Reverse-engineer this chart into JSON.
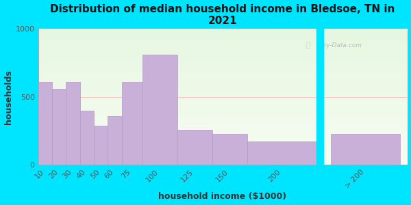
{
  "title": "Distribution of median household income in Bledsoe, TN in\n2021",
  "xlabel": "household income ($1000)",
  "ylabel": "households",
  "bar_labels": [
    "10",
    "20",
    "30",
    "40",
    "50",
    "60",
    "75",
    "100",
    "125",
    "150",
    "200",
    "> 200"
  ],
  "bar_values": [
    610,
    560,
    610,
    400,
    290,
    360,
    610,
    810,
    260,
    230,
    170,
    230
  ],
  "bar_widths": [
    10,
    10,
    10,
    10,
    10,
    10,
    15,
    25,
    25,
    25,
    50,
    50
  ],
  "bar_lefts": [
    5,
    15,
    25,
    35,
    45,
    55,
    65,
    80,
    105,
    130,
    155,
    215
  ],
  "bar_color": "#c8b0d8",
  "bar_edge_color": "#b898c8",
  "ylim": [
    0,
    1000
  ],
  "yticks": [
    0,
    500,
    1000
  ],
  "xlim": [
    5,
    270
  ],
  "background_color": "#00e5ff",
  "plot_bg_color": "#eef5e8",
  "watermark": "City-Data.com",
  "title_fontsize": 11,
  "label_fontsize": 9,
  "tick_fontsize": 8,
  "separator_x": 205,
  "gap_start": 205,
  "gap_end": 210
}
